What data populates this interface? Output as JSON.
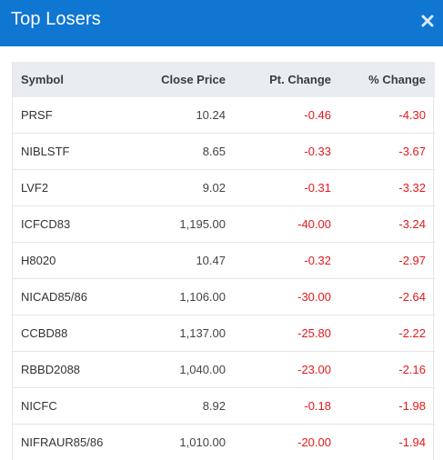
{
  "dialog": {
    "title": "Top Losers",
    "close_icon": "close-icon"
  },
  "colors": {
    "header_bg": "#0f76d2",
    "negative": "#e5181c",
    "table_header_bg": "#e9edf2"
  },
  "table": {
    "headers": {
      "symbol": "Symbol",
      "close_price": "Close Price",
      "pt_change": "Pt. Change",
      "pct_change": "% Change"
    },
    "rows": [
      {
        "symbol": "PRSF",
        "close_price": "10.24",
        "pt_change": "-0.46",
        "pct_change": "-4.30"
      },
      {
        "symbol": "NIBLSTF",
        "close_price": "8.65",
        "pt_change": "-0.33",
        "pct_change": "-3.67"
      },
      {
        "symbol": "LVF2",
        "close_price": "9.02",
        "pt_change": "-0.31",
        "pct_change": "-3.32"
      },
      {
        "symbol": "ICFCD83",
        "close_price": "1,195.00",
        "pt_change": "-40.00",
        "pct_change": "-3.24"
      },
      {
        "symbol": "H8020",
        "close_price": "10.47",
        "pt_change": "-0.32",
        "pct_change": "-2.97"
      },
      {
        "symbol": "NICAD85/86",
        "close_price": "1,106.00",
        "pt_change": "-30.00",
        "pct_change": "-2.64"
      },
      {
        "symbol": "CCBD88",
        "close_price": "1,137.00",
        "pt_change": "-25.80",
        "pct_change": "-2.22"
      },
      {
        "symbol": "RBBD2088",
        "close_price": "1,040.00",
        "pt_change": "-23.00",
        "pct_change": "-2.16"
      },
      {
        "symbol": "NICFC",
        "close_price": "8.92",
        "pt_change": "-0.18",
        "pct_change": "-1.98"
      },
      {
        "symbol": "NIFRAUR85/86",
        "close_price": "1,010.00",
        "pt_change": "-20.00",
        "pct_change": "-1.94"
      }
    ]
  }
}
